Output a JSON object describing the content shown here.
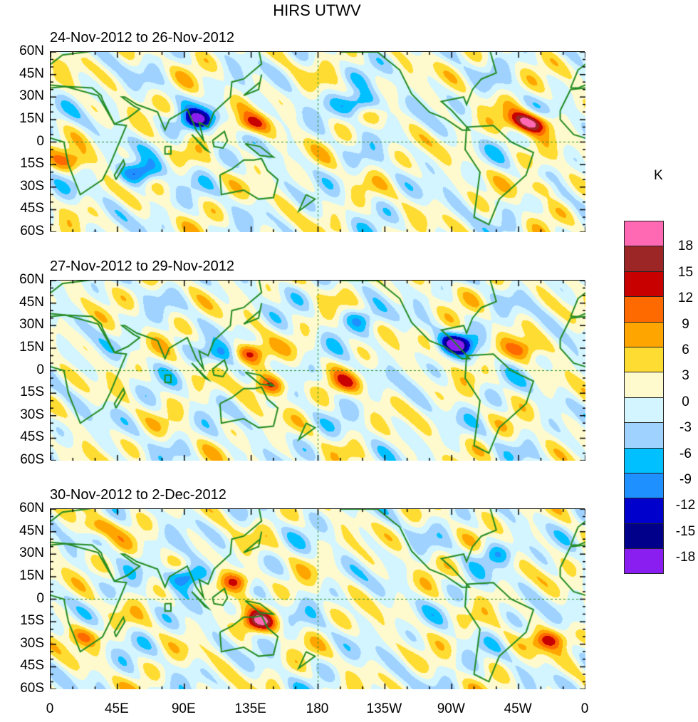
{
  "title": "HIRS UTWV",
  "panels": [
    {
      "title": "24-Nov-2012 to 26-Nov-2012",
      "anomalies": [
        [
          100,
          15,
          -16
        ],
        [
          135,
          12,
          10
        ],
        [
          60,
          -20,
          -14
        ],
        [
          -152,
          26,
          -13
        ],
        [
          -35,
          12,
          14
        ],
        [
          -45,
          15,
          10
        ],
        [
          15,
          -12,
          8
        ],
        [
          -30,
          -30,
          8
        ]
      ]
    },
    {
      "title": "27-Nov-2012 to 29-Nov-2012",
      "anomalies": [
        [
          135,
          12,
          13
        ],
        [
          148,
          -10,
          13
        ],
        [
          -87,
          18,
          -16
        ],
        [
          -160,
          -8,
          7
        ],
        [
          -150,
          35,
          -8
        ],
        [
          115,
          12,
          -8
        ],
        [
          -40,
          15,
          8
        ]
      ]
    },
    {
      "title": "30-Nov-2012 to 2-Dec-2012",
      "anomalies": [
        [
          92,
          15,
          -16
        ],
        [
          125,
          12,
          14
        ],
        [
          140,
          -15,
          15
        ],
        [
          -25,
          -27,
          12
        ],
        [
          30,
          48,
          8
        ],
        [
          20,
          -25,
          8
        ],
        [
          -60,
          30,
          -8
        ]
      ]
    }
  ],
  "lat_labels": [
    "60N",
    "45N",
    "30N",
    "15N",
    "0",
    "15S",
    "30S",
    "45S",
    "60S"
  ],
  "lon_labels": [
    "0",
    "45E",
    "90E",
    "135E",
    "180",
    "135W",
    "90W",
    "45W",
    "0"
  ],
  "colorbar": {
    "unit": "K",
    "levels": [
      "18",
      "15",
      "12",
      "9",
      "6",
      "3",
      "0",
      "-3",
      "-6",
      "-9",
      "-12",
      "-15",
      "-18"
    ],
    "colors": [
      "#ff69b4",
      "#9c2626",
      "#c80000",
      "#ff6a00",
      "#ffa500",
      "#ffdc32",
      "#fffacd",
      "#d2f5ff",
      "#a0d2ff",
      "#00c0ff",
      "#1e90ff",
      "#0000cd",
      "#00008b",
      "#8a1ef0"
    ]
  },
  "coast_color": "#228b22"
}
